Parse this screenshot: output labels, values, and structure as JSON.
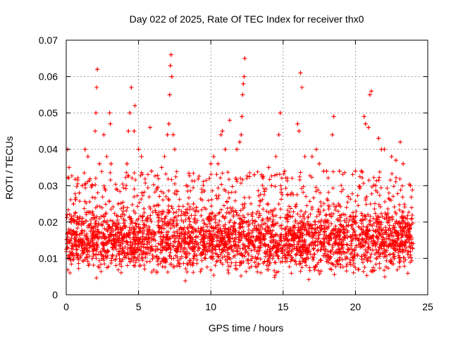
{
  "chart_data": {
    "type": "scatter",
    "title": "Day 022 of 2025, Rate Of TEC Index for receiver thx0",
    "xlabel": "GPS time / hours",
    "ylabel": "ROTI / TECUs",
    "xlim": [
      0,
      25
    ],
    "ylim": [
      0,
      0.07
    ],
    "xticks": [
      0,
      5,
      10,
      15,
      20,
      25
    ],
    "xtick_labels": [
      "0",
      "5",
      "10",
      "15",
      "20",
      "25"
    ],
    "yticks": [
      0,
      0.01,
      0.02,
      0.03,
      0.04,
      0.05,
      0.06,
      0.07
    ],
    "ytick_labels": [
      "0",
      "0.01",
      "0.02",
      "0.03",
      "0.04",
      "0.05",
      "0.06",
      "0.07"
    ],
    "grid": true,
    "legend": "none",
    "marker": "+",
    "color": "#ff0000",
    "series": [
      {
        "points": [
          [
            0.1,
            0.04
          ],
          [
            0.2,
            0.035
          ],
          [
            0.5,
            0.025
          ],
          [
            0.9,
            0.028
          ],
          [
            1.1,
            0.03
          ],
          [
            1.3,
            0.04
          ],
          [
            1.5,
            0.038
          ],
          [
            1.8,
            0.03
          ],
          [
            2.0,
            0.045
          ],
          [
            2.05,
            0.05
          ],
          [
            2.1,
            0.057
          ],
          [
            2.15,
            0.062
          ],
          [
            2.3,
            0.036
          ],
          [
            2.6,
            0.044
          ],
          [
            2.8,
            0.038
          ],
          [
            3.0,
            0.05
          ],
          [
            3.05,
            0.047
          ],
          [
            3.1,
            0.036
          ],
          [
            3.6,
            0.025
          ],
          [
            4.2,
            0.036
          ],
          [
            4.3,
            0.045
          ],
          [
            4.4,
            0.05
          ],
          [
            4.5,
            0.057
          ],
          [
            4.7,
            0.045
          ],
          [
            4.75,
            0.052
          ],
          [
            5.0,
            0.04
          ],
          [
            5.2,
            0.038
          ],
          [
            5.8,
            0.046
          ],
          [
            5.9,
            0.034
          ],
          [
            6.6,
            0.035
          ],
          [
            6.8,
            0.038
          ],
          [
            7.0,
            0.044
          ],
          [
            7.1,
            0.047
          ],
          [
            7.15,
            0.055
          ],
          [
            7.2,
            0.063
          ],
          [
            7.25,
            0.066
          ],
          [
            7.3,
            0.06
          ],
          [
            7.4,
            0.044
          ],
          [
            7.5,
            0.04
          ],
          [
            8.3,
            0.03
          ],
          [
            8.8,
            0.025
          ],
          [
            9.0,
            0.024
          ],
          [
            9.9,
            0.032
          ],
          [
            10.0,
            0.036
          ],
          [
            10.2,
            0.038
          ],
          [
            10.5,
            0.036
          ],
          [
            10.7,
            0.044
          ],
          [
            10.8,
            0.045
          ],
          [
            11.0,
            0.04
          ],
          [
            11.3,
            0.048
          ],
          [
            11.8,
            0.04
          ],
          [
            12.0,
            0.042
          ],
          [
            12.1,
            0.044
          ],
          [
            12.15,
            0.049
          ],
          [
            12.2,
            0.055
          ],
          [
            12.25,
            0.058
          ],
          [
            12.3,
            0.06
          ],
          [
            12.35,
            0.065
          ],
          [
            13.0,
            0.033
          ],
          [
            13.5,
            0.033
          ],
          [
            14.0,
            0.035
          ],
          [
            14.2,
            0.03
          ],
          [
            14.5,
            0.038
          ],
          [
            14.7,
            0.044
          ],
          [
            14.8,
            0.05
          ],
          [
            15.1,
            0.034
          ],
          [
            15.6,
            0.028
          ],
          [
            16.0,
            0.047
          ],
          [
            16.1,
            0.045
          ],
          [
            16.2,
            0.061
          ],
          [
            16.3,
            0.057
          ],
          [
            16.5,
            0.038
          ],
          [
            17.0,
            0.038
          ],
          [
            17.3,
            0.04
          ],
          [
            17.5,
            0.036
          ],
          [
            17.8,
            0.034
          ],
          [
            18.0,
            0.034
          ],
          [
            18.4,
            0.044
          ],
          [
            18.5,
            0.049
          ],
          [
            18.9,
            0.034
          ],
          [
            19.5,
            0.027
          ],
          [
            20.0,
            0.034
          ],
          [
            20.4,
            0.034
          ],
          [
            20.6,
            0.049
          ],
          [
            20.7,
            0.047
          ],
          [
            20.9,
            0.046
          ],
          [
            21.0,
            0.055
          ],
          [
            21.1,
            0.056
          ],
          [
            21.4,
            0.03
          ],
          [
            21.6,
            0.043
          ],
          [
            21.8,
            0.04
          ],
          [
            22.0,
            0.04
          ],
          [
            22.5,
            0.038
          ],
          [
            22.8,
            0.037
          ],
          [
            23.1,
            0.042
          ],
          [
            23.3,
            0.036
          ],
          [
            23.8,
            0.03
          ]
        ]
      }
    ],
    "dense_band": {
      "description_free": true,
      "x_range": [
        0,
        24
      ],
      "y_core": [
        0.003,
        0.024
      ]
    }
  }
}
